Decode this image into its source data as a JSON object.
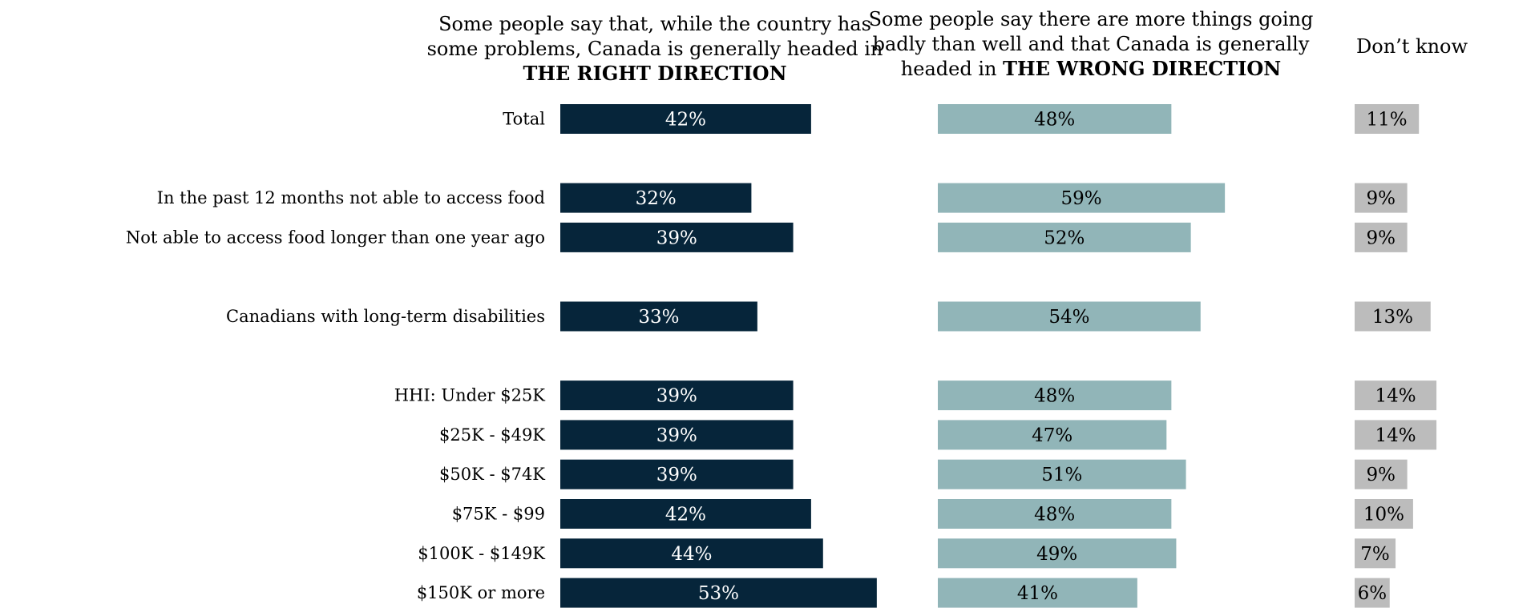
{
  "headers": {
    "right_direction": {
      "line1": "Some people say that, while the country has",
      "line2": "some problems, Canada is generally headed in",
      "line3": "THE RIGHT DIRECTION"
    },
    "wrong_direction": {
      "line1": "Some people say there are more things going",
      "line2": "badly than well and that Canada is generally",
      "line3_prefix": "headed in ",
      "line3_bold": "THE WRONG DIRECTION"
    },
    "dont_know": "Don’t know"
  },
  "colors": {
    "right_direction": "#06253a",
    "wrong_direction": "#91b5b8",
    "dont_know": "#bcbcbc",
    "label_on_dark": "#ffffff",
    "label_on_light": "#000000"
  },
  "chart_data": {
    "type": "bar",
    "orientation": "horizontal",
    "value_unit": "%",
    "categories": [
      "Total",
      "In the past 12 months not able to access food",
      "Not able to access food longer than one year ago",
      "Canadians with long-term disabilities",
      "HHI: Under $25K",
      "$25K - $49K",
      "$50K - $74K",
      "$75K - $99",
      "$100K - $149K",
      "$150K or more"
    ],
    "row_slots": [
      0,
      2,
      3,
      5,
      7,
      8,
      9,
      10,
      11,
      12
    ],
    "series": [
      {
        "name": "THE RIGHT DIRECTION",
        "values": [
          42,
          32,
          39,
          33,
          39,
          39,
          39,
          42,
          44,
          53
        ]
      },
      {
        "name": "THE WRONG DIRECTION",
        "values": [
          48,
          59,
          52,
          54,
          48,
          47,
          51,
          48,
          49,
          41
        ]
      },
      {
        "name": "Don’t know",
        "values": [
          11,
          9,
          9,
          13,
          14,
          14,
          9,
          10,
          7,
          6
        ]
      }
    ],
    "value_labels": [
      [
        "42%",
        "32%",
        "39%",
        "33%",
        "39%",
        "39%",
        "39%",
        "42%",
        "44%",
        "53%"
      ],
      [
        "48%",
        "59%",
        "52%",
        "54%",
        "48%",
        "47%",
        "51%",
        "48%",
        "49%",
        "41%"
      ],
      [
        "11%",
        "9%",
        "9%",
        "13%",
        "14%",
        "14%",
        "9%",
        "10%",
        "7%",
        "6%"
      ]
    ],
    "legend": "column-headers",
    "grid": false,
    "axes_visible": false
  }
}
